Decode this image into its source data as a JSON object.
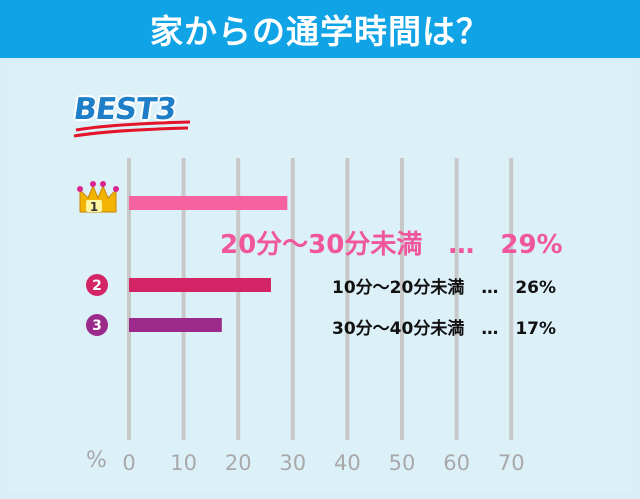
{
  "header": {
    "title": "家からの通学時間は？"
  },
  "badge": {
    "text": "BEST3"
  },
  "ranks": [
    {
      "number": "1",
      "label": "20分～30分未満　…　29%"
    },
    {
      "number": "2",
      "label": "10分～20分未満　…　26%"
    },
    {
      "number": "3",
      "label": "30分～40分未満　…　17%"
    }
  ],
  "chart_data": {
    "type": "bar",
    "orientation": "horizontal",
    "title": "家からの通学時間は？",
    "categories": [
      "20分～30分未満",
      "10分～20分未満",
      "30分～40分未満"
    ],
    "values": [
      29,
      26,
      17
    ],
    "xlabel": "%",
    "xlim": [
      0,
      70
    ],
    "xticks": [
      0,
      10,
      20,
      30,
      40,
      50,
      60,
      70
    ],
    "grid": true,
    "colors": [
      "#f6619f",
      "#d32466",
      "#9c2a8b"
    ]
  },
  "colors": {
    "header": "#10a3e6",
    "background": "#daeef7",
    "grid": "#c8c8c8",
    "crown": "#f2b400",
    "rank2_badge": "#d32466",
    "rank3_badge": "#9c2a8b"
  },
  "icons": [
    "crown-icon",
    "rank-2-badge",
    "rank-3-badge"
  ]
}
